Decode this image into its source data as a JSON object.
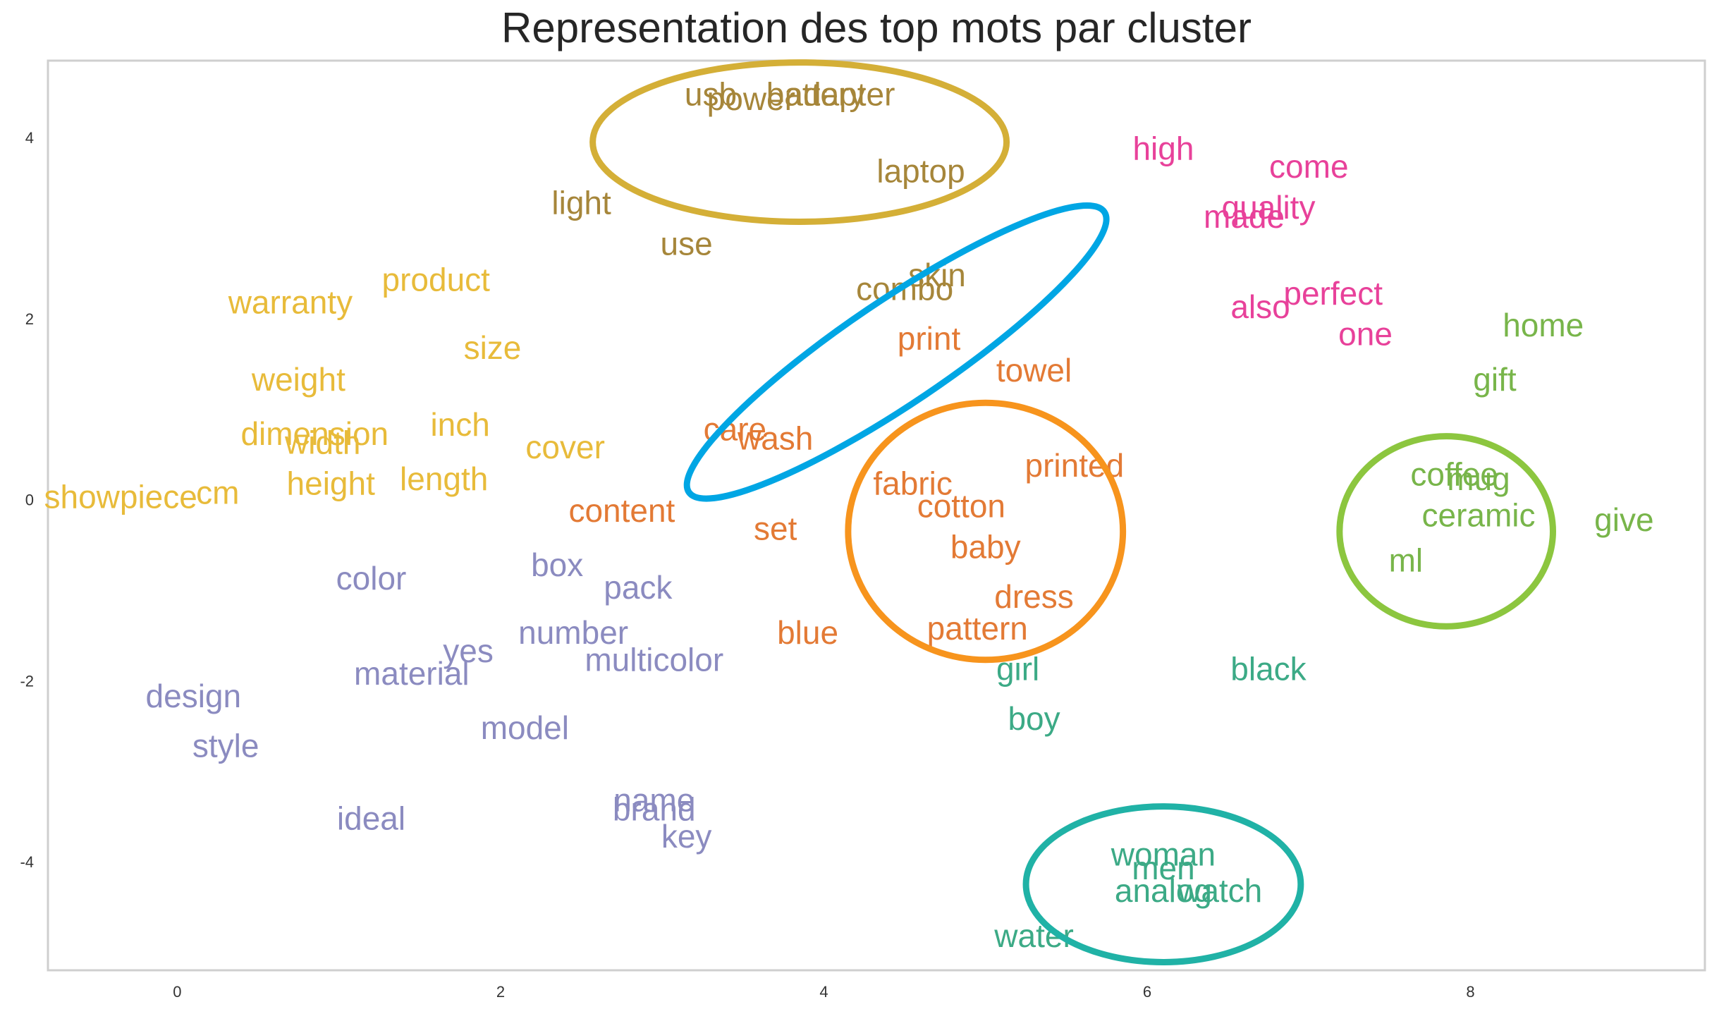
{
  "chart_data": {
    "type": "scatter",
    "title": "Representation des top mots par cluster",
    "xlabel": "",
    "ylabel": "",
    "xlim": [
      -0.8,
      9.45
    ],
    "ylim": [
      -5.2,
      4.85
    ],
    "xticks": [
      0,
      2,
      4,
      6,
      8
    ],
    "yticks": [
      -4,
      -2,
      0,
      2,
      4
    ],
    "grid": false,
    "series": [
      {
        "color": "#a6863a",
        "words": [
          {
            "text": "usb",
            "x": 3.3,
            "y": 4.45
          },
          {
            "text": "power",
            "x": 3.55,
            "y": 4.4
          },
          {
            "text": "battery",
            "x": 3.95,
            "y": 4.45
          },
          {
            "text": "adapter",
            "x": 4.1,
            "y": 4.45
          },
          {
            "text": "laptop",
            "x": 4.6,
            "y": 3.6
          },
          {
            "text": "light",
            "x": 2.5,
            "y": 3.25
          },
          {
            "text": "use",
            "x": 3.15,
            "y": 2.8
          },
          {
            "text": "skin",
            "x": 4.7,
            "y": 2.45
          },
          {
            "text": "combo",
            "x": 4.5,
            "y": 2.3
          }
        ]
      },
      {
        "color": "#e37a35",
        "words": [
          {
            "text": "print",
            "x": 4.65,
            "y": 1.75
          },
          {
            "text": "towel",
            "x": 5.3,
            "y": 1.4
          },
          {
            "text": "care",
            "x": 3.45,
            "y": 0.75
          },
          {
            "text": "wash",
            "x": 3.7,
            "y": 0.65
          },
          {
            "text": "printed",
            "x": 5.55,
            "y": 0.35
          },
          {
            "text": "fabric",
            "x": 4.55,
            "y": 0.15
          },
          {
            "text": "cotton",
            "x": 4.85,
            "y": -0.1
          },
          {
            "text": "content",
            "x": 2.75,
            "y": -0.15
          },
          {
            "text": "set",
            "x": 3.7,
            "y": -0.35
          },
          {
            "text": "baby",
            "x": 5.0,
            "y": -0.55
          },
          {
            "text": "dress",
            "x": 5.3,
            "y": -1.1
          },
          {
            "text": "pattern",
            "x": 4.95,
            "y": -1.45
          },
          {
            "text": "blue",
            "x": 3.9,
            "y": -1.5
          }
        ]
      },
      {
        "color": "#e8bb3a",
        "words": [
          {
            "text": "product",
            "x": 1.6,
            "y": 2.4
          },
          {
            "text": "warranty",
            "x": 0.7,
            "y": 2.15
          },
          {
            "text": "size",
            "x": 1.95,
            "y": 1.65
          },
          {
            "text": "weight",
            "x": 0.75,
            "y": 1.3
          },
          {
            "text": "inch",
            "x": 1.75,
            "y": 0.8
          },
          {
            "text": "dimension",
            "x": 0.85,
            "y": 0.7
          },
          {
            "text": "width",
            "x": 0.9,
            "y": 0.6
          },
          {
            "text": "cover",
            "x": 2.4,
            "y": 0.55
          },
          {
            "text": "height",
            "x": 0.95,
            "y": 0.15
          },
          {
            "text": "length",
            "x": 1.65,
            "y": 0.2
          },
          {
            "text": "showpiece",
            "x": -0.35,
            "y": 0.0
          },
          {
            "text": "cm",
            "x": 0.25,
            "y": 0.05
          }
        ]
      },
      {
        "color": "#e8419a",
        "words": [
          {
            "text": "high",
            "x": 6.1,
            "y": 3.85
          },
          {
            "text": "come",
            "x": 7.0,
            "y": 3.65
          },
          {
            "text": "quality",
            "x": 6.75,
            "y": 3.2
          },
          {
            "text": "made",
            "x": 6.6,
            "y": 3.1
          },
          {
            "text": "perfect",
            "x": 7.15,
            "y": 2.25
          },
          {
            "text": "also",
            "x": 6.7,
            "y": 2.1
          },
          {
            "text": "one",
            "x": 7.35,
            "y": 1.8
          }
        ]
      },
      {
        "color": "#78b54a",
        "words": [
          {
            "text": "home",
            "x": 8.45,
            "y": 1.9
          },
          {
            "text": "gift",
            "x": 8.15,
            "y": 1.3
          },
          {
            "text": "coffee",
            "x": 7.9,
            "y": 0.25
          },
          {
            "text": "mug",
            "x": 8.05,
            "y": 0.2
          },
          {
            "text": "ceramic",
            "x": 8.05,
            "y": -0.2
          },
          {
            "text": "give",
            "x": 8.95,
            "y": -0.25
          },
          {
            "text": "ml",
            "x": 7.6,
            "y": -0.7
          }
        ]
      },
      {
        "color": "#3caa86",
        "words": [
          {
            "text": "girl",
            "x": 5.2,
            "y": -1.9
          },
          {
            "text": "black",
            "x": 6.75,
            "y": -1.9
          },
          {
            "text": "boy",
            "x": 5.3,
            "y": -2.45
          },
          {
            "text": "woman",
            "x": 6.1,
            "y": -3.95
          },
          {
            "text": "men",
            "x": 6.1,
            "y": -4.1
          },
          {
            "text": "analog",
            "x": 6.1,
            "y": -4.35
          },
          {
            "text": "watch",
            "x": 6.45,
            "y": -4.35
          },
          {
            "text": "water",
            "x": 5.3,
            "y": -4.85
          }
        ]
      },
      {
        "color": "#8b8bc0",
        "words": [
          {
            "text": "color",
            "x": 1.2,
            "y": -0.9
          },
          {
            "text": "box",
            "x": 2.35,
            "y": -0.75
          },
          {
            "text": "pack",
            "x": 2.85,
            "y": -1.0
          },
          {
            "text": "number",
            "x": 2.45,
            "y": -1.5
          },
          {
            "text": "yes",
            "x": 1.8,
            "y": -1.7
          },
          {
            "text": "multicolor",
            "x": 2.95,
            "y": -1.8
          },
          {
            "text": "material",
            "x": 1.45,
            "y": -1.95
          },
          {
            "text": "design",
            "x": 0.1,
            "y": -2.2
          },
          {
            "text": "model",
            "x": 2.15,
            "y": -2.55
          },
          {
            "text": "style",
            "x": 0.3,
            "y": -2.75
          },
          {
            "text": "name",
            "x": 2.95,
            "y": -3.35
          },
          {
            "text": "brand",
            "x": 2.95,
            "y": -3.45
          },
          {
            "text": "ideal",
            "x": 1.2,
            "y": -3.55
          },
          {
            "text": "key",
            "x": 3.15,
            "y": -3.75
          }
        ]
      }
    ],
    "highlights": [
      {
        "color": "#d4af37",
        "cx": 3.85,
        "cy": 3.95,
        "rx": 1.28,
        "ry": 0.88,
        "rotation": 0
      },
      {
        "color": "#00a6e4",
        "cx": 4.45,
        "cy": 1.63,
        "rx": 1.55,
        "ry": 0.57,
        "rotation": -34
      },
      {
        "color": "#f7941d",
        "cx": 5.0,
        "cy": -0.35,
        "rx": 0.85,
        "ry": 1.42,
        "rotation": 0
      },
      {
        "color": "#8cc63f",
        "cx": 7.85,
        "cy": -0.35,
        "rx": 0.66,
        "ry": 1.05,
        "rotation": 0
      },
      {
        "color": "#20b2a6",
        "cx": 6.1,
        "cy": -4.25,
        "rx": 0.85,
        "ry": 0.86,
        "rotation": 0
      }
    ]
  }
}
